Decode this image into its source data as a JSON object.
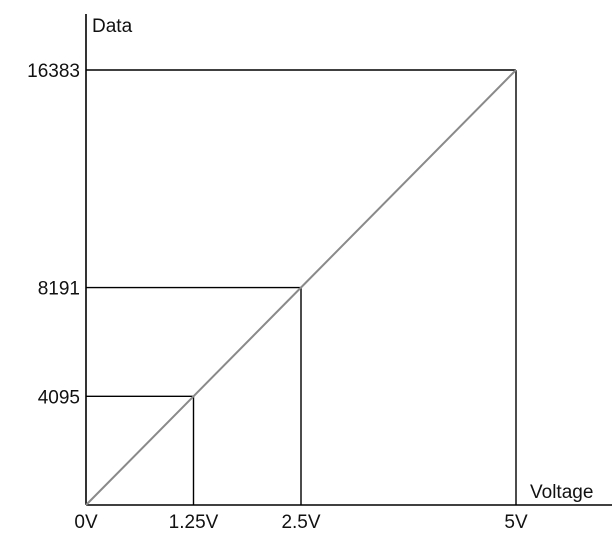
{
  "chart_data": {
    "type": "line",
    "xlabel": "Voltage",
    "ylabel": "Data",
    "xlim": [
      0,
      5
    ],
    "ylim": [
      0,
      16383
    ],
    "x_ticks": [
      {
        "value": 0,
        "label": "0V"
      },
      {
        "value": 1.25,
        "label": "1.25V"
      },
      {
        "value": 2.5,
        "label": "2.5V"
      },
      {
        "value": 5,
        "label": "5V"
      }
    ],
    "y_ticks": [
      {
        "value": 4095,
        "label": "4095"
      },
      {
        "value": 8191,
        "label": "8191"
      },
      {
        "value": 16383,
        "label": "16383"
      }
    ],
    "series": [
      {
        "color": "#8a8a8a",
        "x": [
          0,
          1.25,
          2.5,
          5
        ],
        "y": [
          0,
          4095,
          8191,
          16383
        ]
      }
    ],
    "reference_lines": [
      {
        "x": 1.25,
        "y": 4095
      },
      {
        "x": 2.5,
        "y": 8191
      },
      {
        "x": 5,
        "y": 16383
      }
    ],
    "grid": false,
    "legend": "none"
  }
}
